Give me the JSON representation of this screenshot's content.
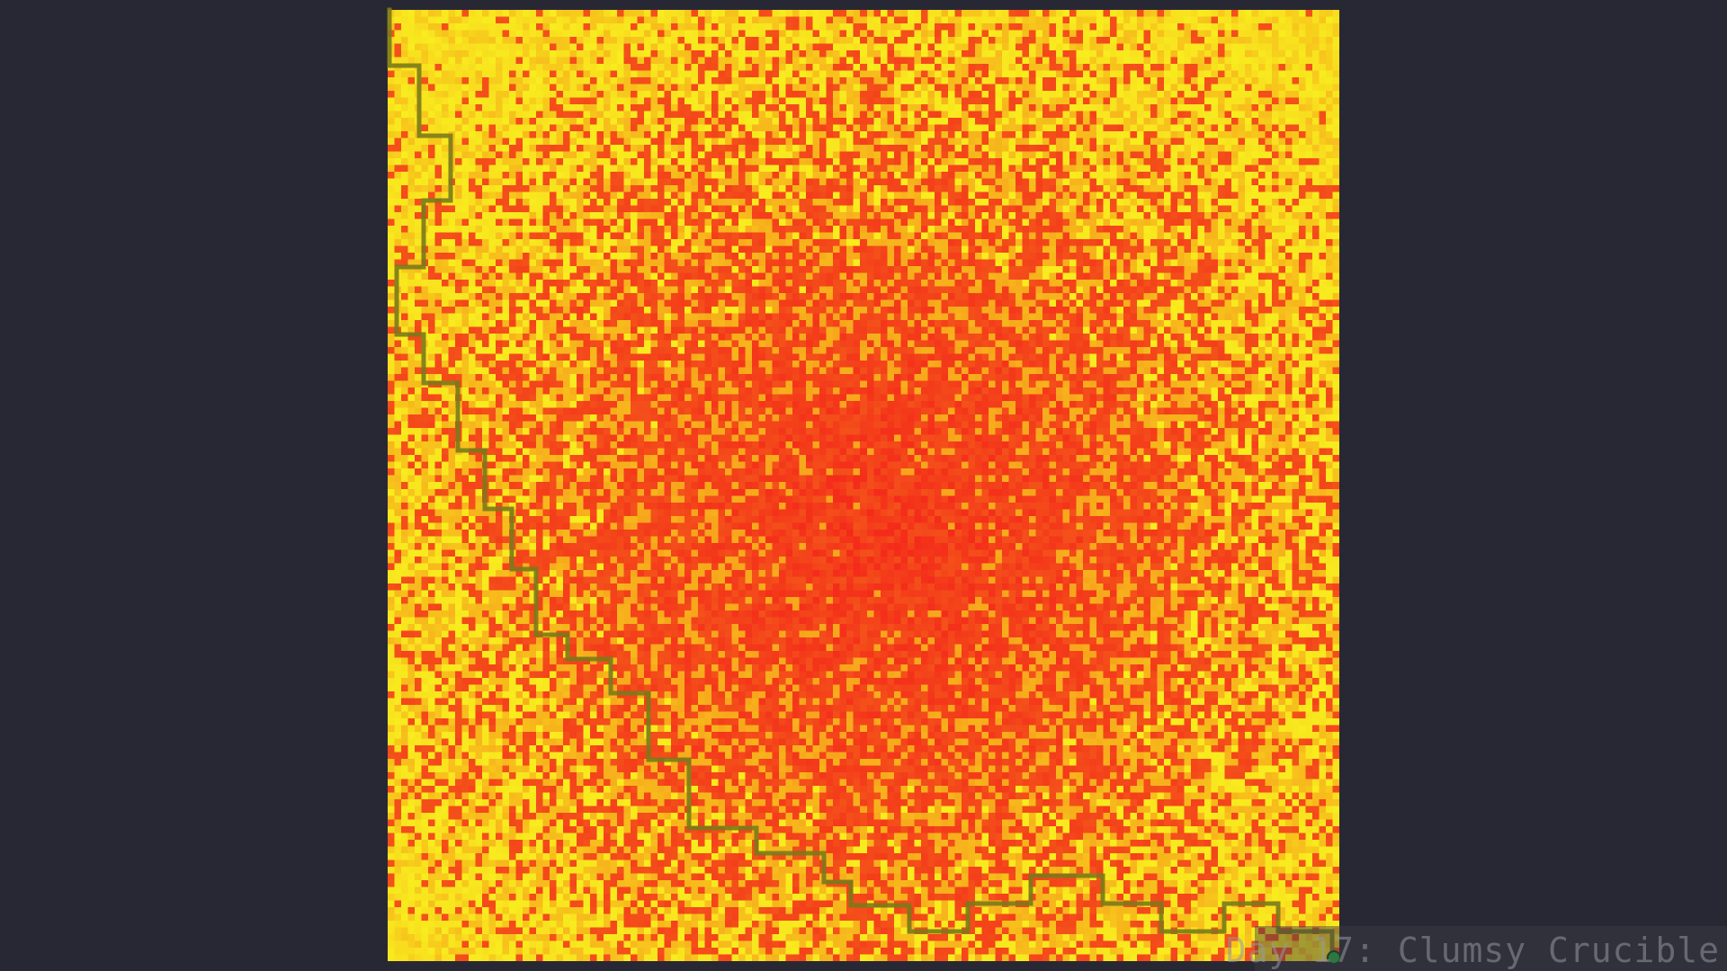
{
  "caption": {
    "text": "Day 17: Clumsy Crucible"
  },
  "visualization": {
    "description": "heat-loss grid",
    "grid_size": 141,
    "palette": {
      "background": "#282834",
      "low": "#f8ef1f",
      "mid": "#f7a21c",
      "high": "#f42a1a",
      "path": "#7a7a1a",
      "endpoint": "#1faa3a"
    },
    "endpoint_icon": "green-dot-icon"
  }
}
